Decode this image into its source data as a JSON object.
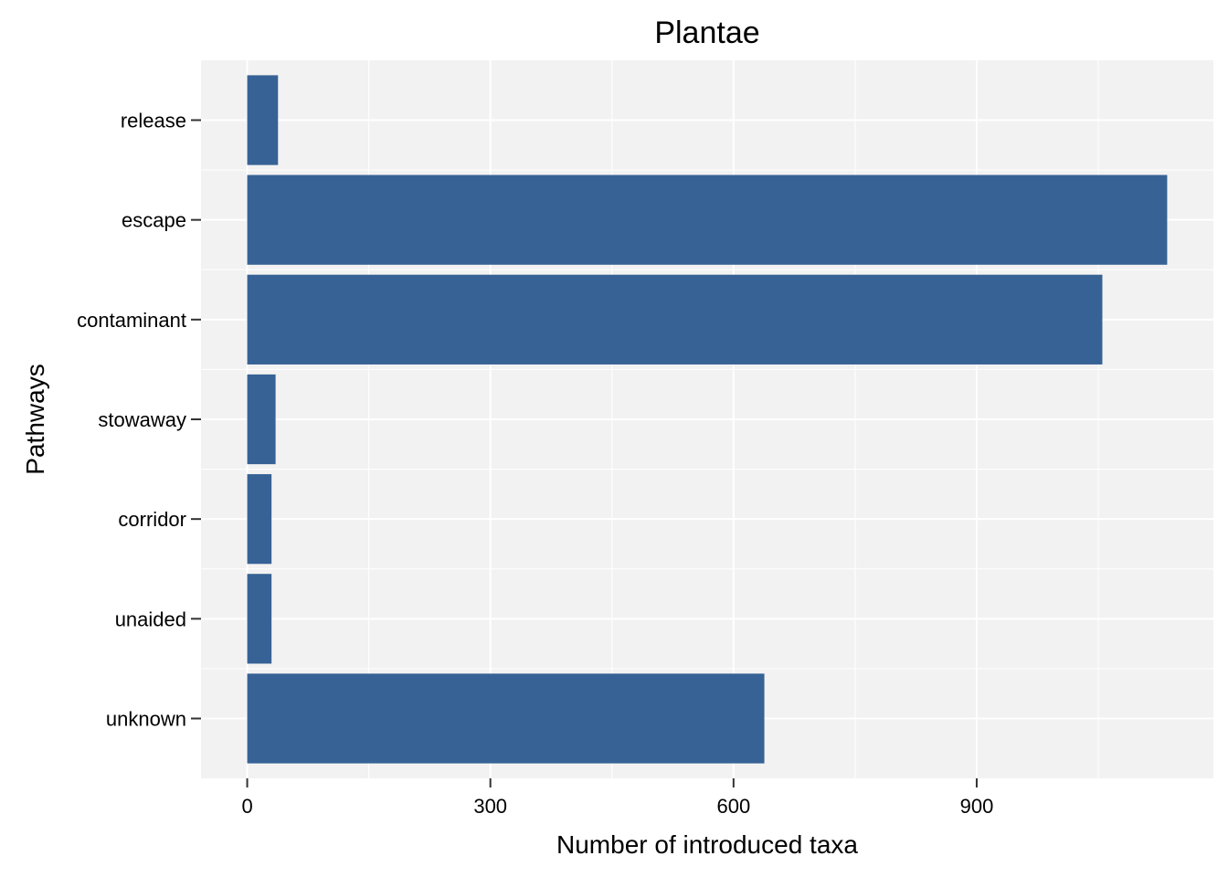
{
  "chart_data": {
    "type": "bar",
    "orientation": "horizontal",
    "title": "Plantae",
    "xlabel": "Number of introduced taxa",
    "ylabel": "Pathways",
    "categories": [
      "release",
      "escape",
      "contaminant",
      "stowaway",
      "corridor",
      "unaided",
      "unknown"
    ],
    "values": [
      38,
      1135,
      1055,
      35,
      30,
      30,
      638
    ],
    "xlim": [
      -57,
      1192
    ],
    "xticks": [
      0,
      300,
      600,
      900
    ],
    "xtick_labels": [
      "0",
      "300",
      "600",
      "900"
    ],
    "xminor": [
      150,
      450,
      750,
      1050
    ],
    "grid": true,
    "legend": "none",
    "colors": {
      "bar": "#376295",
      "panel": "#f2f2f2",
      "grid": "#ffffff"
    }
  }
}
